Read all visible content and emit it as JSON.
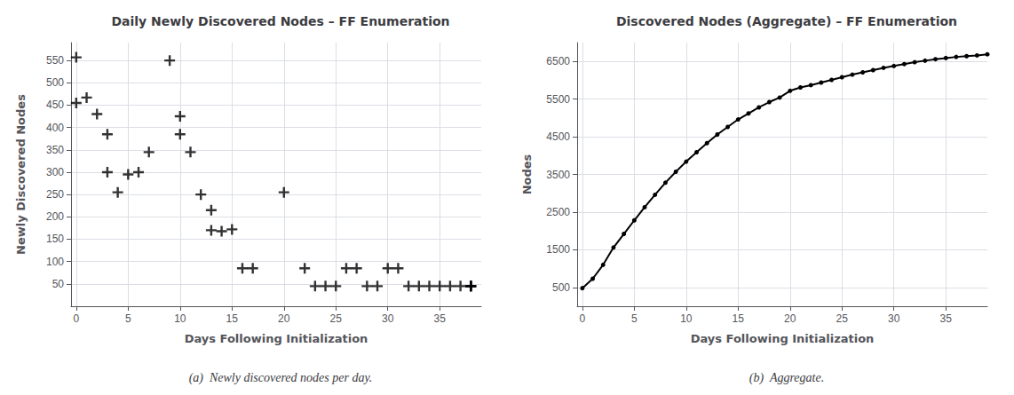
{
  "chart_data": [
    {
      "type": "scatter",
      "title": "Daily Newly Discovered Nodes – FF Enumeration",
      "xlabel": "Days Following Initialization",
      "ylabel": "Newly Discovered Nodes",
      "caption": "(a)  Newly discovered nodes per day.",
      "x": [
        0,
        0,
        1,
        2,
        3,
        3,
        4,
        5,
        6,
        7,
        9,
        10,
        10,
        11,
        12,
        13,
        13,
        14,
        15,
        16,
        17,
        20,
        22,
        23,
        24,
        25,
        26,
        27,
        28,
        29,
        30,
        31,
        32,
        33,
        34,
        35,
        36,
        37,
        38,
        38,
        38,
        38
      ],
      "values": [
        455,
        557,
        467,
        430,
        385,
        300,
        255,
        295,
        300,
        345,
        550,
        425,
        385,
        345,
        250,
        215,
        170,
        168,
        172,
        85,
        85,
        255,
        85,
        45,
        45,
        45,
        85,
        85,
        45,
        45,
        85,
        85,
        45,
        45,
        45,
        45,
        45,
        45,
        45,
        45,
        45,
        45
      ],
      "color": "#000000",
      "marker": "plus",
      "xlim": [
        -0.5,
        39
      ],
      "ylim": [
        0,
        590
      ],
      "xticks": [
        0,
        5,
        10,
        15,
        20,
        25,
        30,
        35
      ],
      "yticks": [
        50,
        100,
        150,
        200,
        250,
        300,
        350,
        400,
        450,
        500,
        550
      ],
      "grid": true
    },
    {
      "type": "line",
      "title": "Discovered Nodes (Aggregate) – FF Enumeration",
      "xlabel": "Days Following Initialization",
      "ylabel": "Nodes",
      "caption": "(b)  Aggregate.",
      "x": [
        0,
        1,
        2,
        3,
        4,
        5,
        6,
        7,
        8,
        9,
        10,
        11,
        12,
        13,
        14,
        15,
        16,
        17,
        18,
        19,
        20,
        21,
        22,
        23,
        24,
        25,
        26,
        27,
        28,
        29,
        30,
        31,
        32,
        33,
        34,
        35,
        36,
        37,
        38,
        39
      ],
      "values": [
        480,
        730,
        1100,
        1560,
        1920,
        2280,
        2630,
        2960,
        3280,
        3570,
        3840,
        4090,
        4330,
        4560,
        4760,
        4960,
        5120,
        5280,
        5420,
        5540,
        5720,
        5810,
        5870,
        5940,
        6010,
        6080,
        6150,
        6210,
        6270,
        6330,
        6380,
        6430,
        6480,
        6520,
        6560,
        6590,
        6620,
        6640,
        6660,
        6690
      ],
      "color": "#000000",
      "marker": "circle",
      "xlim": [
        -0.5,
        39
      ],
      "ylim": [
        0,
        7000
      ],
      "xticks": [
        0,
        5,
        10,
        15,
        20,
        25,
        30,
        35
      ],
      "yticks": [
        500,
        1500,
        2500,
        3500,
        4500,
        5500,
        6500
      ],
      "grid": true
    }
  ]
}
